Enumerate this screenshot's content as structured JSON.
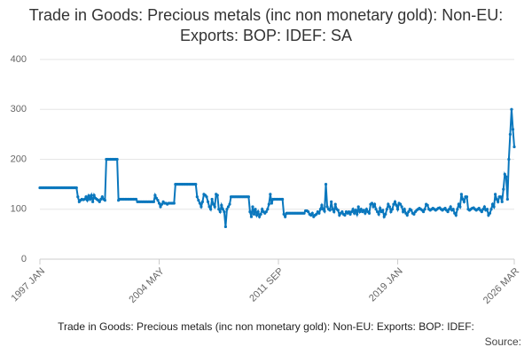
{
  "chart_data": {
    "type": "line",
    "title": "Trade in Goods: Precious metals (inc non monetary gold): Non-EU: Exports: BOP: IDEF: SA",
    "footnote": "Trade in Goods: Precious metals (inc non monetary gold): Non-EU: Exports: BOP: IDEF:",
    "source": "Source:",
    "color": "#0a77bd",
    "ylim": [
      0,
      400
    ],
    "yticks": [
      0,
      100,
      200,
      300,
      400
    ],
    "grid": true,
    "categories": [
      "1997 JAN",
      null,
      null,
      null,
      null,
      null,
      null,
      null,
      null,
      null,
      null,
      null,
      null,
      null,
      null,
      null,
      null,
      null,
      null,
      null,
      null,
      null,
      null,
      null,
      null,
      null,
      null,
      null,
      null,
      null,
      null,
      null,
      null,
      null,
      null,
      null,
      null,
      null,
      null,
      null,
      null,
      null,
      null,
      null,
      null,
      null,
      null,
      null,
      null,
      null,
      null,
      null,
      null,
      null,
      null,
      null,
      null,
      null,
      null,
      null,
      null,
      null,
      null,
      null,
      null,
      null,
      null,
      null,
      null,
      null,
      null,
      null,
      null,
      null,
      null,
      null,
      null,
      null,
      null,
      null,
      null,
      null,
      null,
      null,
      null,
      null,
      null,
      null,
      "2004 MAY",
      null,
      null,
      null,
      null,
      null,
      null,
      null,
      null,
      null,
      null,
      null,
      null,
      null,
      null,
      null,
      null,
      null,
      null,
      null,
      null,
      null,
      null,
      null,
      null,
      null,
      null,
      null,
      null,
      null,
      null,
      null,
      null,
      null,
      null,
      null,
      null,
      null,
      null,
      null,
      null,
      null,
      null,
      null,
      null,
      null,
      null,
      null,
      null,
      null,
      null,
      null,
      null,
      null,
      null,
      null,
      null,
      null,
      null,
      null,
      null,
      null,
      null,
      null,
      null,
      null,
      null,
      null,
      null,
      null,
      null,
      null,
      null,
      null,
      null,
      null,
      null,
      null,
      null,
      null,
      null,
      null,
      null,
      null,
      null,
      null,
      null,
      null,
      "2011 SEP",
      null,
      null,
      null,
      null,
      null,
      null,
      null,
      null,
      null,
      null,
      null,
      null,
      null,
      null,
      null,
      null,
      null,
      null,
      null,
      null,
      null,
      null,
      null,
      null,
      null,
      null,
      null,
      null,
      null,
      null,
      null,
      null,
      null,
      null,
      null,
      null,
      null,
      null,
      null,
      null,
      null,
      null,
      null,
      null,
      null,
      null,
      null,
      null,
      null,
      null,
      null,
      null,
      null,
      null,
      null,
      null,
      null,
      null,
      null,
      null,
      null,
      null,
      null,
      null,
      null,
      null,
      null,
      null,
      null,
      null,
      null,
      null,
      null,
      null,
      null,
      null,
      null,
      null,
      null,
      null,
      null,
      null,
      null,
      null,
      null,
      null,
      null,
      "2019 JAN",
      null,
      null,
      null,
      null,
      null,
      null,
      null,
      null,
      null,
      null,
      null,
      null,
      null,
      null,
      null,
      null,
      null,
      null,
      null,
      null,
      null,
      null,
      null,
      null,
      null,
      null,
      null,
      null,
      null,
      null,
      null,
      null,
      null,
      null,
      null,
      null,
      null,
      null,
      null,
      null,
      null,
      null,
      null,
      null,
      null,
      null,
      null,
      null,
      null,
      null,
      null,
      null,
      null,
      null,
      null,
      null,
      null,
      null,
      null,
      null,
      null,
      null,
      null,
      null,
      null,
      null,
      null,
      null,
      null,
      null,
      null,
      null,
      null,
      null,
      null,
      null,
      null,
      null,
      null,
      null,
      null,
      null,
      null,
      null,
      null,
      "2026 MAR"
    ],
    "values": [
      143,
      143,
      143,
      143,
      143,
      143,
      143,
      143,
      143,
      143,
      143,
      143,
      143,
      143,
      143,
      143,
      143,
      143,
      143,
      143,
      143,
      143,
      143,
      143,
      143,
      143,
      143,
      143,
      125,
      115,
      118,
      120,
      119,
      120,
      125,
      118,
      127,
      120,
      128,
      115,
      128,
      122,
      120,
      118,
      115,
      120,
      125,
      120,
      118,
      200,
      200,
      200,
      200,
      200,
      200,
      200,
      200,
      200,
      118,
      120,
      120,
      120,
      120,
      120,
      120,
      120,
      120,
      120,
      120,
      120,
      120,
      120,
      115,
      115,
      115,
      115,
      115,
      115,
      115,
      115,
      115,
      115,
      115,
      115,
      115,
      128,
      122,
      118,
      112,
      105,
      110,
      115,
      112,
      112,
      110,
      112,
      112,
      112,
      112,
      112,
      150,
      150,
      150,
      150,
      150,
      150,
      150,
      150,
      150,
      150,
      150,
      150,
      150,
      150,
      150,
      150,
      125,
      118,
      112,
      105,
      115,
      130,
      128,
      125,
      115,
      105,
      100,
      120,
      110,
      105,
      130,
      128,
      100,
      95,
      108,
      100,
      95,
      65,
      100,
      105,
      110,
      125,
      125,
      125,
      125,
      125,
      125,
      125,
      125,
      125,
      125,
      125,
      125,
      125,
      125,
      95,
      85,
      105,
      90,
      100,
      88,
      95,
      85,
      90,
      100,
      95,
      92,
      95,
      100,
      110,
      130,
      112,
      120,
      120,
      120,
      120,
      120,
      120,
      120,
      120,
      90,
      85,
      92,
      92,
      92,
      92,
      92,
      92,
      92,
      92,
      92,
      92,
      92,
      92,
      92,
      92,
      97,
      97,
      95,
      90,
      88,
      92,
      85,
      88,
      90,
      95,
      92,
      100,
      108,
      100,
      96,
      150,
      105,
      100,
      98,
      115,
      100,
      95,
      110,
      100,
      98,
      88,
      92,
      95,
      90,
      88,
      95,
      92,
      95,
      90,
      95,
      100,
      92,
      98,
      90,
      105,
      95,
      100,
      95,
      98,
      92,
      100,
      95,
      92,
      110,
      112,
      105,
      110,
      100,
      95,
      90,
      102,
      95,
      98,
      85,
      90,
      100,
      110,
      105,
      95,
      100,
      110,
      115,
      108,
      100,
      112,
      110,
      105,
      95,
      100,
      92,
      88,
      95,
      100,
      98,
      92,
      90,
      95,
      98,
      100,
      102,
      100,
      98,
      95,
      100,
      110,
      108,
      100,
      98,
      100,
      102,
      100,
      98,
      100,
      102,
      103,
      100,
      98,
      100,
      102,
      98,
      95,
      100,
      105,
      98,
      100,
      92,
      88,
      100,
      110,
      105,
      130,
      120,
      115,
      125,
      125,
      100,
      98,
      100,
      102,
      103,
      100,
      98,
      100,
      102,
      98,
      95,
      100,
      105,
      98,
      100,
      88,
      92,
      100,
      110,
      105,
      130,
      120,
      115,
      125,
      125,
      115,
      140,
      170,
      165,
      120,
      200,
      250,
      300,
      260,
      225
    ]
  }
}
